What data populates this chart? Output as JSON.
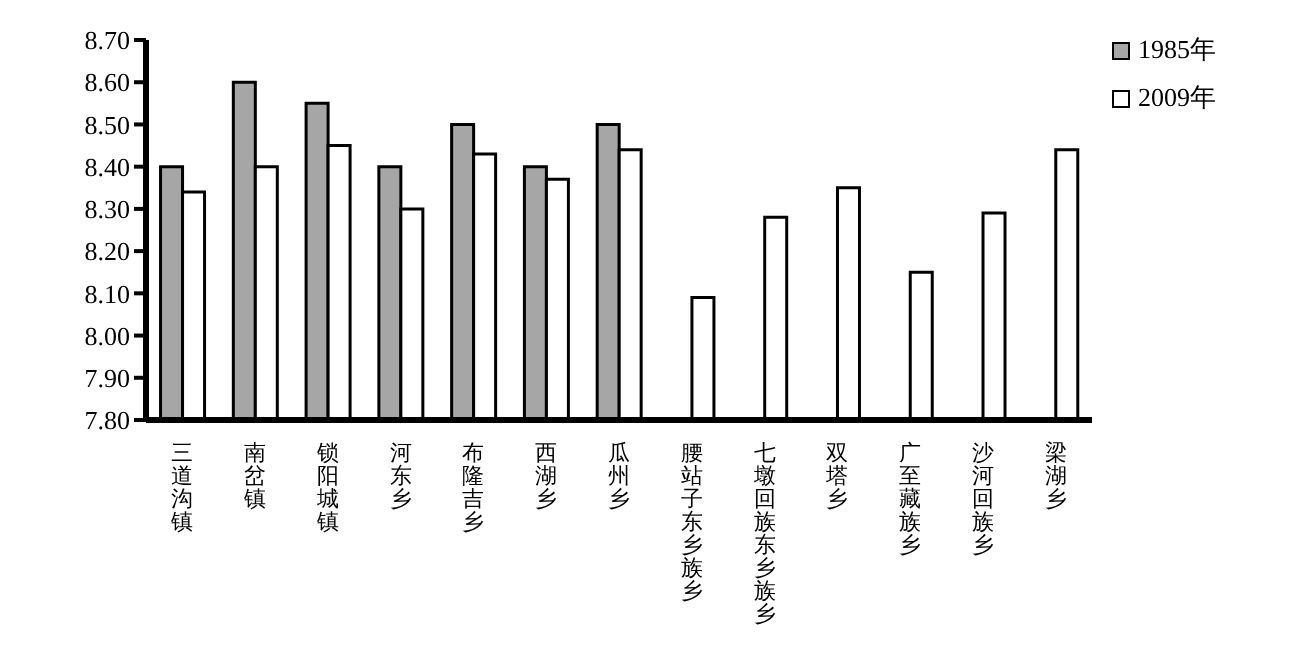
{
  "chart_data": {
    "type": "bar",
    "categories": [
      "三道沟镇",
      "南岔镇",
      "锁阳城镇",
      "河东乡",
      "布隆吉乡",
      "西湖乡",
      "瓜州乡",
      "腰站子东乡族乡",
      "七墩回族东乡族乡",
      "双塔乡",
      "广至藏族乡",
      "沙河回族乡",
      "梁湖乡"
    ],
    "series": [
      {
        "name": "1985年",
        "color": "#a6a6a6",
        "values": [
          8.4,
          8.6,
          8.55,
          8.4,
          8.5,
          8.4,
          8.5,
          null,
          null,
          null,
          null,
          null,
          null
        ]
      },
      {
        "name": "2009年",
        "color": "#ffffff",
        "values": [
          8.34,
          8.4,
          8.45,
          8.3,
          8.43,
          8.37,
          8.44,
          8.09,
          8.28,
          8.35,
          8.15,
          8.29,
          8.44
        ]
      }
    ],
    "ylim": [
      7.8,
      8.7
    ],
    "yticks": [
      {
        "value": 7.8,
        "label": "7.80"
      },
      {
        "value": 7.9,
        "label": "7.90"
      },
      {
        "value": 8.0,
        "label": "8.00"
      },
      {
        "value": 8.1,
        "label": "8.10"
      },
      {
        "value": 8.2,
        "label": "8.20"
      },
      {
        "value": 8.3,
        "label": "8.30"
      },
      {
        "value": 8.4,
        "label": "8.40"
      },
      {
        "value": 8.5,
        "label": "8.50"
      },
      {
        "value": 8.6,
        "label": "8.60"
      },
      {
        "value": 8.7,
        "label": "8.70"
      }
    ],
    "grid": false,
    "legend": "top right"
  }
}
